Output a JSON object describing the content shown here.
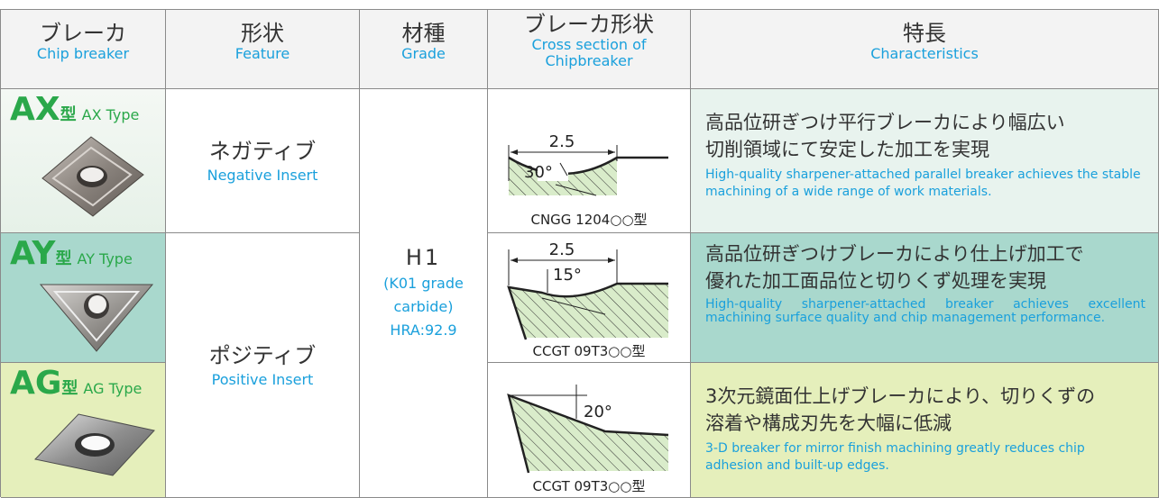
{
  "table": {
    "header": [
      {
        "ja": "ブレーカ",
        "en": [
          "Chip breaker"
        ]
      },
      {
        "ja": "形状",
        "en": [
          "Feature"
        ]
      },
      {
        "ja": "材種",
        "en": [
          "Grade"
        ]
      },
      {
        "ja": "ブレーカ形状",
        "en": [
          "Cross section of",
          "Chipbreaker"
        ]
      },
      {
        "ja": "特長",
        "en": [
          "Characteristics"
        ]
      }
    ],
    "rows": [
      {
        "code": "AX",
        "suffix": "型",
        "type": "AX Type",
        "section": {
          "labels": [
            "2.5",
            "30°"
          ],
          "model": "CNGG 1204○○型"
        },
        "ja": [
          "高品位研ぎつけ平行ブレーカにより幅広い",
          "切削領域にて安定した加工を実現"
        ],
        "en": "High-quality sharpener-attached parallel breaker achieves the stable machining of a wide range of work materials."
      },
      {
        "code": "AY",
        "suffix": "型",
        "type": "AY Type",
        "section": {
          "labels": [
            "2.5",
            "15°"
          ],
          "model": "CCGT 09T3○○型"
        },
        "ja": [
          "高品位研ぎつけブレーカにより仕上げ加工で",
          "優れた加工面品位と切りくず処理を実現"
        ],
        "en": "High-quality sharpener-attached breaker achieves excellent machining surface quality and chip management performance."
      },
      {
        "code": "AG",
        "suffix": "型",
        "type": "AG Type",
        "section": {
          "labels": [
            "20°"
          ],
          "model": "CCGT 09T3○○型"
        },
        "ja": [
          "3次元鏡面仕上げブレーカにより、切りくずの",
          "溶着や構成刃先を大幅に低減"
        ],
        "en": "3-D breaker for mirror finish machining greatly reduces chip adhesion and built-up edges."
      }
    ],
    "features": [
      {
        "ja": "ネガティブ",
        "en": "Negative Insert"
      },
      {
        "ja": "ポジティブ",
        "en": "Positive Insert"
      }
    ],
    "grade": {
      "name": "H1",
      "note": "(K01 grade carbide)",
      "hardness": "HRA:92.9"
    }
  }
}
